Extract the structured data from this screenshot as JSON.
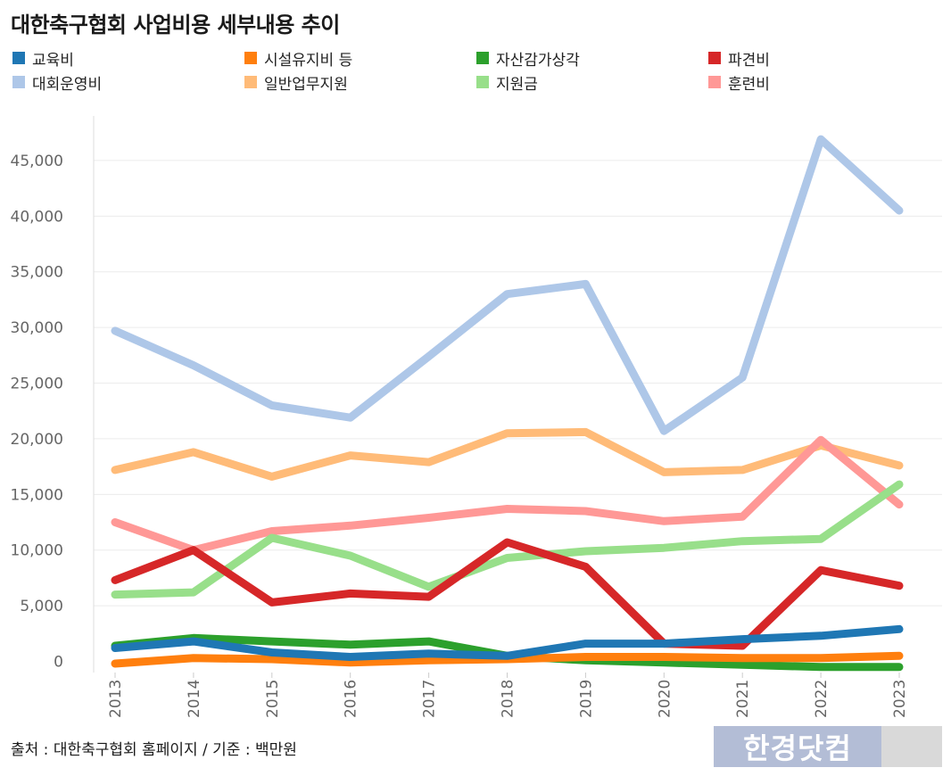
{
  "chart_data": {
    "type": "line",
    "title": "대한축구협회 사업비용 세부내용 추이",
    "x": [
      "2013",
      "2014",
      "2015",
      "2016",
      "2017",
      "2018",
      "2019",
      "2020",
      "2021",
      "2022",
      "2023"
    ],
    "y_ticks": [
      "0",
      "5,000",
      "10,000",
      "15,000",
      "20,000",
      "25,000",
      "30,000",
      "35,000",
      "40,000",
      "45,000"
    ],
    "ylim": [
      -1000,
      49000
    ],
    "grid": true,
    "legend_position": "top",
    "series": [
      {
        "name": "교육비",
        "color": "#1f77b4",
        "values": [
          1200,
          1800,
          800,
          400,
          700,
          500,
          1600,
          1600,
          2000,
          2300,
          2900
        ]
      },
      {
        "name": "대회운영비",
        "color": "#aec7e8",
        "values": [
          29700,
          26600,
          23000,
          21900,
          27400,
          33000,
          33900,
          20700,
          25500,
          46900,
          40500
        ]
      },
      {
        "name": "시설유지비 등",
        "color": "#ff7f0e",
        "values": [
          -200,
          300,
          200,
          -100,
          100,
          200,
          400,
          400,
          300,
          300,
          500
        ]
      },
      {
        "name": "일반업무지원",
        "color": "#ffbb78",
        "values": [
          17200,
          18800,
          16600,
          18500,
          17900,
          20500,
          20600,
          17000,
          17200,
          19400,
          17600
        ]
      },
      {
        "name": "자산감가상각",
        "color": "#2ca02c",
        "values": [
          1400,
          2100,
          1800,
          1500,
          1800,
          500,
          100,
          -100,
          -300,
          -500,
          -500
        ]
      },
      {
        "name": "지원금",
        "color": "#98df8a",
        "values": [
          6000,
          6200,
          11100,
          9500,
          6700,
          9300,
          9900,
          10200,
          10800,
          11000,
          15900
        ]
      },
      {
        "name": "파견비",
        "color": "#d62728",
        "values": [
          7300,
          10000,
          5300,
          6100,
          5800,
          10700,
          8500,
          1600,
          1400,
          8200,
          6800
        ]
      },
      {
        "name": "훈련비",
        "color": "#ff9896",
        "values": [
          12500,
          10000,
          11700,
          12200,
          12900,
          13700,
          13500,
          12600,
          13000,
          19900,
          14100
        ]
      }
    ]
  },
  "source": "출처 : 대한축구협회 홈페이지 / 기준 : 백만원",
  "brand": "한경닷컴"
}
